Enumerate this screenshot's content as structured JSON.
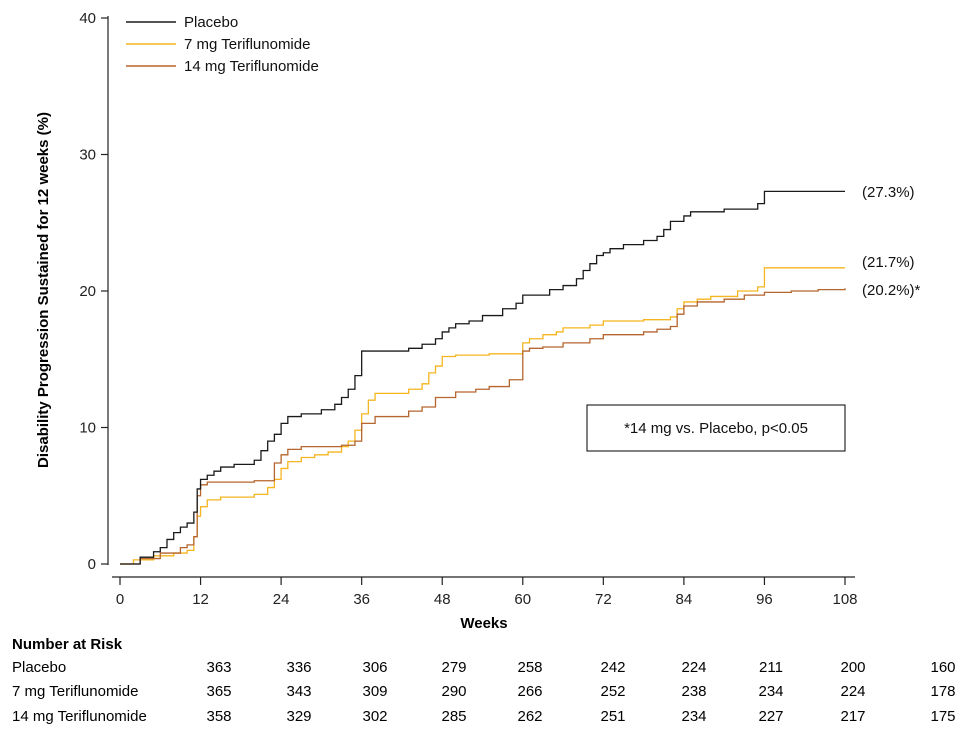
{
  "chart_data": {
    "type": "line",
    "step": true,
    "xlabel": "Weeks",
    "ylabel": "Disability Progression Sustained for 12 weeks (%)",
    "xlim": [
      0,
      108
    ],
    "ylim": [
      0,
      40
    ],
    "xticks": [
      0,
      12,
      24,
      36,
      48,
      60,
      72,
      84,
      96,
      108
    ],
    "yticks": [
      0,
      10,
      20,
      30,
      40
    ],
    "grid": false,
    "legend_position": "top-left",
    "series": [
      {
        "name": "Placebo",
        "color": "#1a1a1a",
        "end_label": "(27.3%)",
        "x": [
          0,
          3,
          5,
          6,
          7,
          8,
          9,
          10,
          11,
          11.5,
          12,
          13,
          14,
          15,
          17,
          20,
          21,
          22,
          23,
          24,
          25,
          27,
          30,
          32,
          33,
          34,
          35,
          36,
          43,
          45,
          47,
          48,
          49,
          50,
          52,
          54,
          57,
          59,
          60,
          64,
          66,
          68,
          69,
          70,
          71,
          72,
          73,
          75,
          78,
          80,
          81,
          82,
          84,
          85,
          90,
          95,
          96,
          108
        ],
        "y": [
          0,
          0.5,
          0.9,
          1.2,
          1.8,
          2.3,
          2.7,
          3.0,
          3.8,
          5.5,
          6.2,
          6.5,
          6.8,
          7.1,
          7.3,
          7.6,
          8.3,
          9.0,
          9.5,
          10.3,
          10.8,
          11.0,
          11.3,
          11.7,
          12.2,
          12.8,
          13.8,
          15.6,
          15.8,
          16.1,
          16.5,
          17.0,
          17.3,
          17.6,
          17.8,
          18.2,
          18.7,
          19.1,
          19.7,
          20.1,
          20.4,
          20.9,
          21.5,
          22.0,
          22.6,
          22.8,
          23.1,
          23.4,
          23.7,
          24.0,
          24.5,
          25.1,
          25.5,
          25.8,
          26.0,
          26.4,
          27.3,
          27.3
        ]
      },
      {
        "name": "7 mg Teriflunomide",
        "color": "#f5b51e",
        "end_label": "(21.7%)",
        "x": [
          0,
          2,
          5,
          8,
          10,
          11,
          11.5,
          12,
          13,
          15,
          20,
          22,
          23,
          24,
          25,
          27,
          29,
          31,
          33,
          34,
          35,
          36,
          37,
          38,
          43,
          45,
          46,
          47,
          48,
          50,
          55,
          60,
          61,
          63,
          65,
          66,
          70,
          72,
          78,
          82,
          83,
          84,
          86,
          88,
          92,
          95,
          96,
          108
        ],
        "y": [
          0,
          0.3,
          0.6,
          0.8,
          1.0,
          2.0,
          3.5,
          4.2,
          4.7,
          4.9,
          5.1,
          5.6,
          6.2,
          7.0,
          7.5,
          7.8,
          8.0,
          8.2,
          8.6,
          9.0,
          9.8,
          11.0,
          12.0,
          12.5,
          12.8,
          13.2,
          14.0,
          14.5,
          15.2,
          15.3,
          15.4,
          16.2,
          16.5,
          16.8,
          17.0,
          17.3,
          17.5,
          17.8,
          17.9,
          18.1,
          18.7,
          19.2,
          19.4,
          19.6,
          20.0,
          20.3,
          21.7,
          21.7
        ]
      },
      {
        "name": "14 mg Teriflunomide",
        "color": "#b5652d",
        "end_label": "(20.2%)*",
        "x": [
          0,
          3,
          6,
          9,
          10,
          11,
          11.5,
          12,
          13,
          15,
          20,
          23,
          24,
          25,
          27,
          33,
          35,
          36,
          38,
          43,
          45,
          47,
          50,
          53,
          55,
          58,
          60,
          61,
          63,
          66,
          70,
          72,
          78,
          80,
          82,
          83,
          84,
          86,
          90,
          93,
          96,
          100,
          104,
          108
        ],
        "y": [
          0,
          0.4,
          0.8,
          1.2,
          1.4,
          2.0,
          5.0,
          5.8,
          6.0,
          6.0,
          6.1,
          7.4,
          8.0,
          8.4,
          8.6,
          8.7,
          9.0,
          10.3,
          10.8,
          11.2,
          11.5,
          12.2,
          12.6,
          12.8,
          13.0,
          13.5,
          15.6,
          15.8,
          15.9,
          16.2,
          16.5,
          16.8,
          17.0,
          17.2,
          17.4,
          18.3,
          18.9,
          19.2,
          19.4,
          19.7,
          19.9,
          20.0,
          20.1,
          20.2
        ]
      }
    ],
    "annotation": "*14 mg vs. Placebo, p<0.05",
    "number_at_risk": {
      "title": "Number at Risk",
      "weeks": [
        0,
        12,
        24,
        36,
        48,
        60,
        72,
        84,
        96,
        108
      ],
      "rows": [
        {
          "label": "Placebo",
          "values": [
            "363",
            "336",
            "306",
            "279",
            "258",
            "242",
            "224",
            "211",
            "200",
            "160"
          ]
        },
        {
          "label": "7 mg Teriflunomide",
          "values": [
            "365",
            "343",
            "309",
            "290",
            "266",
            "252",
            "238",
            "234",
            "224",
            "178"
          ]
        },
        {
          "label": "14 mg Teriflunomide",
          "values": [
            "358",
            "329",
            "302",
            "285",
            "262",
            "251",
            "234",
            "227",
            "217",
            "175"
          ]
        }
      ]
    }
  }
}
